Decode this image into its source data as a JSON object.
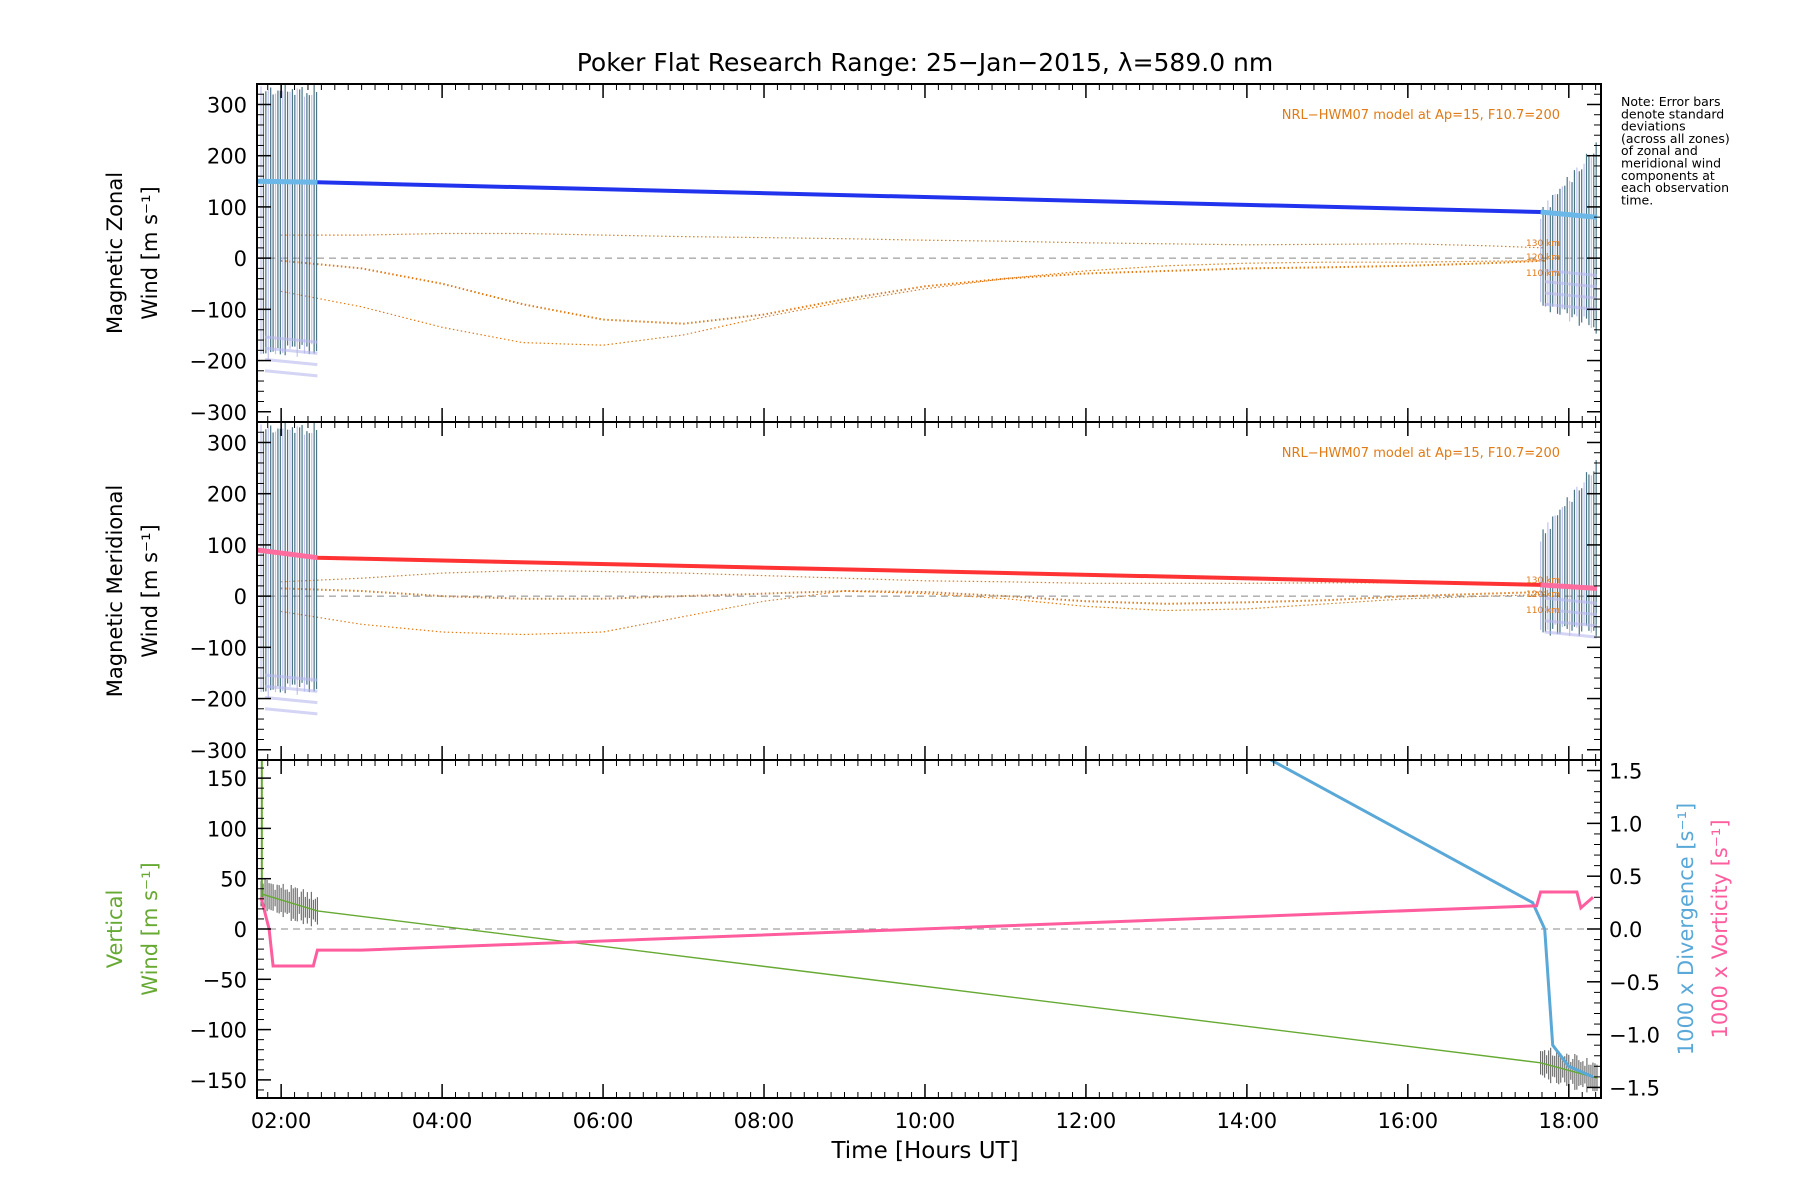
{
  "title": "Poker Flat Research Range: 25−Jan−2015, λ=589.0 nm",
  "note_lines": [
    "Note: Error bars",
    "denote standard",
    "deviations",
    "(across all zones)",
    "of zonal and",
    "meridional wind",
    "components at",
    "each observation",
    "time."
  ],
  "model_label": "NRL−HWM07 model at Ap=15, F10.7=200",
  "altitude_labels": [
    "130 km",
    "120 km",
    "110 km"
  ],
  "xlabel": "Time [Hours UT]",
  "colors": {
    "zonal": "#2233ee",
    "meridional": "#ff3333",
    "vertical": "#66aa33",
    "divergence": "#5aa8d8",
    "vorticity": "#ff5d9e",
    "model": "#e07b16",
    "errorbar": "#b8b8ee",
    "fringe": "#2a5d70"
  },
  "chart_data": [
    {
      "type": "line",
      "name": "zonal-panel",
      "ylabel_lines": [
        "Magnetic Zonal",
        "Wind [m s⁻¹]"
      ],
      "xlim": [
        1.7,
        18.4
      ],
      "ylim": [
        -320,
        340
      ],
      "y_ticks": [
        "300",
        "200",
        "100",
        "0",
        "−100",
        "−200",
        "−300"
      ],
      "y_tick_values": [
        300,
        200,
        100,
        0,
        -100,
        -200,
        -300
      ],
      "wind": {
        "x": [
          1.7,
          2.45,
          17.65,
          18.35
        ],
        "y": [
          150,
          148,
          90,
          80
        ]
      },
      "wind_errorband": {
        "x": [
          1.75,
          2.45,
          17.65,
          18.35
        ],
        "upper": [
          340,
          340,
          100,
          230
        ],
        "lower": [
          -200,
          -190,
          -100,
          -150
        ]
      },
      "model_curves": [
        {
          "x": [
            2.0,
            3.0,
            4.0,
            5.0,
            6.0,
            7.0,
            8.0,
            9.0,
            10.0,
            11.0,
            12.0,
            13.0,
            14.0,
            15.0,
            16.0,
            17.0,
            17.7
          ],
          "y": [
            45,
            45,
            48,
            48,
            45,
            42,
            40,
            38,
            35,
            33,
            30,
            28,
            26,
            27,
            28,
            24,
            20
          ]
        },
        {
          "x": [
            2.0,
            3.0,
            4.0,
            5.0,
            6.0,
            7.0,
            8.0,
            9.0,
            10.0,
            11.0,
            12.0,
            13.0,
            14.0,
            15.0,
            16.0,
            17.0,
            17.7
          ],
          "y": [
            -5,
            -20,
            -50,
            -90,
            -120,
            -128,
            -110,
            -80,
            -55,
            -40,
            -30,
            -25,
            -20,
            -18,
            -15,
            -10,
            -5
          ]
        },
        {
          "x": [
            2.0,
            3.0,
            4.0,
            5.0,
            6.0,
            7.0,
            8.0,
            9.0,
            10.0,
            11.0,
            12.0,
            13.0,
            14.0,
            15.0,
            16.0,
            17.0,
            17.7
          ],
          "y": [
            -65,
            -95,
            -135,
            -165,
            -170,
            -150,
            -115,
            -85,
            -60,
            -40,
            -25,
            -15,
            -10,
            -8,
            -8,
            -6,
            -5
          ]
        }
      ]
    },
    {
      "type": "line",
      "name": "meridional-panel",
      "ylabel_lines": [
        "Magnetic Meridional",
        "Wind [m s⁻¹]"
      ],
      "xlim": [
        1.7,
        18.4
      ],
      "ylim": [
        -320,
        340
      ],
      "y_ticks": [
        "300",
        "200",
        "100",
        "0",
        "−100",
        "−200",
        "−300"
      ],
      "y_tick_values": [
        300,
        200,
        100,
        0,
        -100,
        -200,
        -300
      ],
      "wind": {
        "x": [
          1.7,
          2.45,
          17.65,
          18.35
        ],
        "y": [
          90,
          75,
          22,
          15
        ]
      },
      "wind_errorband": {
        "x": [
          1.75,
          2.45,
          17.65,
          18.35
        ],
        "upper": [
          340,
          340,
          130,
          270
        ],
        "lower": [
          -200,
          -190,
          -80,
          -80
        ]
      },
      "model_curves": [
        {
          "x": [
            2.0,
            3.0,
            4.0,
            5.0,
            6.0,
            7.0,
            8.0,
            9.0,
            10.0,
            11.0,
            12.0,
            13.0,
            14.0,
            15.0,
            16.0,
            17.0,
            17.7
          ],
          "y": [
            28,
            35,
            45,
            50,
            48,
            45,
            40,
            35,
            30,
            28,
            25,
            25,
            25,
            26,
            26,
            24,
            22
          ]
        },
        {
          "x": [
            2.0,
            3.0,
            4.0,
            5.0,
            6.0,
            7.0,
            8.0,
            9.0,
            10.0,
            11.0,
            12.0,
            13.0,
            14.0,
            15.0,
            16.0,
            17.0,
            17.7
          ],
          "y": [
            15,
            10,
            0,
            -5,
            -5,
            0,
            5,
            10,
            8,
            0,
            -10,
            -15,
            -12,
            -8,
            0,
            5,
            8
          ]
        },
        {
          "x": [
            2.0,
            3.0,
            4.0,
            5.0,
            6.0,
            7.0,
            8.0,
            9.0,
            10.0,
            11.0,
            12.0,
            13.0,
            14.0,
            15.0,
            16.0,
            17.0,
            17.7
          ],
          "y": [
            -30,
            -55,
            -70,
            -75,
            -70,
            -40,
            -10,
            10,
            5,
            -5,
            -20,
            -28,
            -25,
            -15,
            -5,
            0,
            3
          ]
        }
      ]
    },
    {
      "type": "line",
      "name": "vertical-panel",
      "ylabel_lines": [
        "Vertical",
        "Wind [m s⁻¹]"
      ],
      "right_ylabel_divergence": "1000 x Divergence [s⁻¹]",
      "right_ylabel_vorticity": "1000 x Vorticity [s⁻¹]",
      "xlim": [
        1.7,
        18.4
      ],
      "ylim": [
        -168,
        168
      ],
      "y_ticks": [
        "150",
        "100",
        "50",
        "0",
        "−50",
        "−100",
        "−150"
      ],
      "y_tick_values": [
        150,
        100,
        50,
        0,
        -50,
        -100,
        -150
      ],
      "y2lim": [
        -1.6,
        1.6
      ],
      "y2_ticks": [
        "1.5",
        "1.0",
        "0.5",
        "0.0",
        "−0.5",
        "−1.0",
        "−1.5"
      ],
      "y2_tick_values": [
        1.5,
        1.0,
        0.5,
        0.0,
        -0.5,
        -1.0,
        -1.5
      ],
      "x_ticks": [
        "02:00",
        "04:00",
        "06:00",
        "08:00",
        "10:00",
        "12:00",
        "14:00",
        "16:00",
        "18:00"
      ],
      "x_tick_values": [
        2,
        4,
        6,
        8,
        10,
        12,
        14,
        16,
        18
      ],
      "vertical_wind": {
        "x": [
          1.75,
          2.45,
          17.65,
          18.35
        ],
        "y": [
          35,
          18,
          -133,
          -148
        ]
      },
      "divergence": {
        "x": [
          14.3,
          17.55,
          17.7,
          17.8,
          18.0,
          18.3
        ],
        "y": [
          1.6,
          0.25,
          0.0,
          -1.1,
          -1.3,
          -1.4
        ]
      },
      "vorticity": {
        "x": [
          1.75,
          1.85,
          1.9,
          2.4,
          2.45,
          3.0,
          17.6,
          17.65,
          18.1,
          18.15,
          18.3
        ],
        "y": [
          0.3,
          0.0,
          -0.35,
          -0.35,
          -0.2,
          -0.2,
          0.22,
          0.35,
          0.35,
          0.2,
          0.3
        ]
      }
    }
  ]
}
